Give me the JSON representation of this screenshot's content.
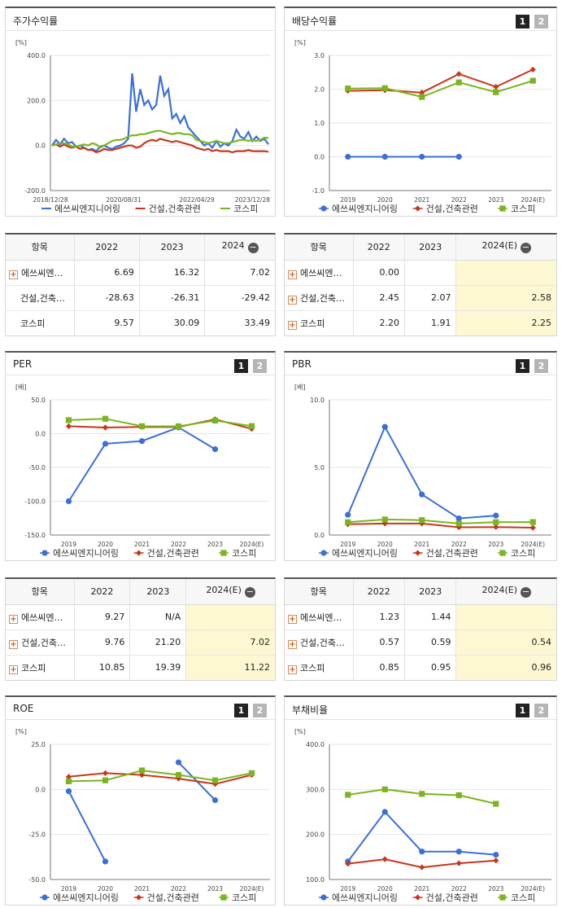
{
  "colors": {
    "s1": "#3a6fd8",
    "s2": "#c9361b",
    "s3": "#7ab520",
    "tab_on": "#222222",
    "tab_off": "#b5b5b5",
    "highlight": "#fdf8d2"
  },
  "legend": [
    "에쓰씨엔지니어링",
    "건설,건축관련",
    "코스피"
  ],
  "tabs": [
    "1",
    "2"
  ],
  "charts": {
    "price": {
      "title": "주가수익률",
      "unit": "[%]",
      "chart_data": {
        "type": "line",
        "ylim": [
          -200,
          400
        ],
        "yticks": [
          "400.0",
          "200.0",
          "0.0",
          "-200.0"
        ],
        "xtick_labels": [
          "2018/12/28",
          "2020/08/31",
          "2022/04/29",
          "2023/12/28"
        ],
        "series": [
          {
            "name": "에쓰씨엔지니어링",
            "values": [
              0,
              25,
              5,
              30,
              10,
              15,
              -5,
              0,
              -10,
              -20,
              -15,
              -25,
              -5,
              0,
              -10,
              -15,
              -5,
              0,
              10,
              30,
              320,
              150,
              250,
              180,
              200,
              160,
              180,
              310,
              220,
              250,
              120,
              140,
              100,
              130,
              80,
              60,
              40,
              20,
              0,
              10,
              -10,
              20,
              -5,
              10,
              0,
              20,
              70,
              40,
              30,
              60,
              20,
              40,
              20,
              30,
              5
            ]
          },
          {
            "name": "건설,건축관련",
            "values": [
              0,
              5,
              -5,
              5,
              -5,
              -10,
              -5,
              -15,
              -10,
              -20,
              -20,
              -30,
              -25,
              -15,
              -20,
              -20,
              -15,
              -10,
              -5,
              0,
              0,
              -10,
              -5,
              10,
              20,
              25,
              20,
              30,
              25,
              20,
              15,
              20,
              15,
              10,
              5,
              0,
              -10,
              -15,
              -20,
              -15,
              -25,
              -20,
              -25,
              -25,
              -25,
              -30,
              -25,
              -25,
              -25,
              -20,
              -25,
              -25,
              -25,
              -25,
              -28
            ]
          },
          {
            "name": "코스피",
            "values": [
              0,
              5,
              10,
              10,
              5,
              -5,
              -5,
              0,
              5,
              0,
              10,
              5,
              -10,
              0,
              10,
              20,
              25,
              25,
              30,
              40,
              45,
              45,
              50,
              50,
              55,
              60,
              65,
              65,
              60,
              55,
              50,
              55,
              55,
              50,
              50,
              45,
              25,
              20,
              15,
              10,
              15,
              20,
              15,
              10,
              10,
              15,
              20,
              25,
              25,
              20,
              25,
              20,
              25,
              35,
              33
            ]
          }
        ]
      }
    },
    "div": {
      "title": "배당수익률",
      "unit": "[%]",
      "chart_data": {
        "type": "line",
        "ylim": [
          -1,
          3
        ],
        "yticks": [
          "3.0",
          "2.0",
          "1.0",
          "0.0",
          "-1.0"
        ],
        "categories": [
          "2019",
          "2020",
          "2021",
          "2022",
          "2023",
          "2024(E)"
        ],
        "series": [
          {
            "name": "에쓰씨엔지니어링",
            "values": [
              0,
              0,
              0,
              0,
              null,
              null
            ]
          },
          {
            "name": "건설,건축관련",
            "values": [
              1.95,
              1.97,
              1.9,
              2.45,
              2.07,
              2.58
            ]
          },
          {
            "name": "코스피",
            "values": [
              2.02,
              2.03,
              1.77,
              2.2,
              1.91,
              2.25
            ]
          }
        ]
      }
    },
    "per": {
      "title": "PER",
      "unit": "[배]",
      "chart_data": {
        "type": "line",
        "ylim": [
          -150,
          50
        ],
        "yticks": [
          "50.0",
          "0.0",
          "-50.0",
          "-100.0",
          "-150.0"
        ],
        "categories": [
          "2019",
          "2020",
          "2021",
          "2022",
          "2023",
          "2024(E)"
        ],
        "series": [
          {
            "name": "에쓰씨엔지니어링",
            "values": [
              -100,
              -15,
              -11,
              9.27,
              -23,
              null
            ]
          },
          {
            "name": "건설,건축관련",
            "values": [
              11,
              9,
              10,
              9.76,
              21.2,
              7.02
            ]
          },
          {
            "name": "코스피",
            "values": [
              20,
              22,
              11,
              10.85,
              19.39,
              11.22
            ]
          }
        ]
      }
    },
    "pbr": {
      "title": "PBR",
      "unit": "[배]",
      "chart_data": {
        "type": "line",
        "ylim": [
          0,
          10
        ],
        "yticks": [
          "10.0",
          "5.0",
          "0.0"
        ],
        "categories": [
          "2019",
          "2020",
          "2021",
          "2022",
          "2023",
          "2024(E)"
        ],
        "series": [
          {
            "name": "에쓰씨엔지니어링",
            "values": [
              1.5,
              8.0,
              3.0,
              1.23,
              1.44,
              null
            ]
          },
          {
            "name": "건설,건축관련",
            "values": [
              0.8,
              0.85,
              0.85,
              0.57,
              0.59,
              0.54
            ]
          },
          {
            "name": "코스피",
            "values": [
              0.95,
              1.15,
              1.1,
              0.85,
              0.95,
              0.96
            ]
          }
        ]
      }
    },
    "roe": {
      "title": "ROE",
      "unit": "[%]",
      "chart_data": {
        "type": "line",
        "ylim": [
          -50,
          25
        ],
        "yticks": [
          "25.0",
          "0.0",
          "-25.0",
          "-50.0"
        ],
        "categories": [
          "2019",
          "2020",
          "2021",
          "2022",
          "2023",
          "2024(E)"
        ],
        "series": [
          {
            "name": "에쓰씨엔지니어링",
            "values": [
              -1,
              -40,
              null,
              15,
              -6,
              null
            ]
          },
          {
            "name": "건설,건축관련",
            "values": [
              7,
              9,
              8,
              6,
              3,
              8
            ]
          },
          {
            "name": "코스피",
            "values": [
              4.5,
              5,
              10.5,
              8,
              5,
              9
            ]
          }
        ]
      }
    },
    "debt": {
      "title": "부채비율",
      "unit": "[%]",
      "chart_data": {
        "type": "line",
        "ylim": [
          100,
          400
        ],
        "yticks": [
          "400.0",
          "300.0",
          "200.0",
          "100.0"
        ],
        "categories": [
          "2019",
          "2020",
          "2021",
          "2022",
          "2023",
          "2024(E)"
        ],
        "series": [
          {
            "name": "에쓰씨엔지니어링",
            "values": [
              140,
              250,
              162,
              162,
              155,
              null
            ]
          },
          {
            "name": "건설,건축관련",
            "values": [
              135,
              145,
              127,
              136,
              142,
              null
            ]
          },
          {
            "name": "코스피",
            "values": [
              288,
              300,
              290,
              287,
              268,
              null
            ]
          }
        ]
      }
    }
  },
  "tables": {
    "price": {
      "head": [
        "항목",
        "2022",
        "2023",
        "2024"
      ],
      "minus": "−",
      "rows": [
        {
          "plus": "+",
          "name": "에쓰씨엔…",
          "v": [
            "6.69",
            "16.32",
            "7.02"
          ]
        },
        {
          "plus": "",
          "name": "건설,건축…",
          "v": [
            "-28.63",
            "-26.31",
            "-29.42"
          ]
        },
        {
          "plus": "",
          "name": "코스피",
          "v": [
            "9.57",
            "30.09",
            "33.49"
          ]
        }
      ]
    },
    "div": {
      "head": [
        "항목",
        "2022",
        "2023",
        "2024(E)"
      ],
      "minus": "−",
      "rows": [
        {
          "plus": "+",
          "name": "에쓰씨엔…",
          "v": [
            "0.00",
            "",
            ""
          ]
        },
        {
          "plus": "+",
          "name": "건설,건축…",
          "v": [
            "2.45",
            "2.07",
            "2.58"
          ]
        },
        {
          "plus": "+",
          "name": "코스피",
          "v": [
            "2.20",
            "1.91",
            "2.25"
          ]
        }
      ]
    },
    "per": {
      "head": [
        "항목",
        "2022",
        "2023",
        "2024(E)"
      ],
      "minus": "−",
      "rows": [
        {
          "plus": "+",
          "name": "에쓰씨엔…",
          "v": [
            "9.27",
            "N/A",
            ""
          ]
        },
        {
          "plus": "+",
          "name": "건설,건축…",
          "v": [
            "9.76",
            "21.20",
            "7.02"
          ]
        },
        {
          "plus": "+",
          "name": "코스피",
          "v": [
            "10.85",
            "19.39",
            "11.22"
          ]
        }
      ]
    },
    "pbr": {
      "head": [
        "항목",
        "2022",
        "2023",
        "2024(E)"
      ],
      "minus": "−",
      "rows": [
        {
          "plus": "+",
          "name": "에쓰씨엔…",
          "v": [
            "1.23",
            "1.44",
            ""
          ]
        },
        {
          "plus": "+",
          "name": "건설,건축…",
          "v": [
            "0.57",
            "0.59",
            "0.54"
          ]
        },
        {
          "plus": "+",
          "name": "코스피",
          "v": [
            "0.85",
            "0.95",
            "0.96"
          ]
        }
      ]
    }
  }
}
